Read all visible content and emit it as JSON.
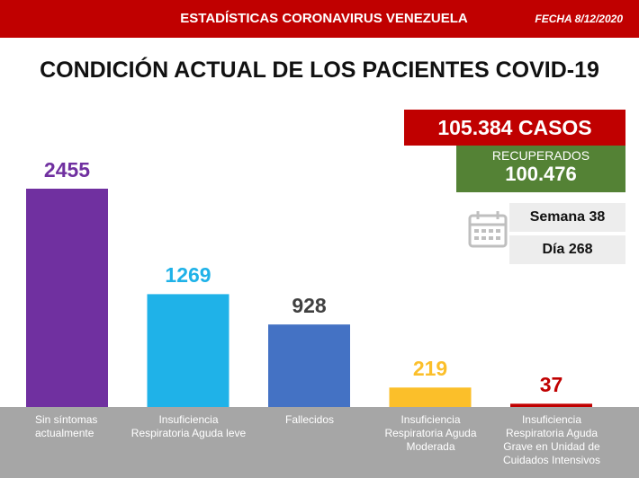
{
  "header": {
    "title": "ESTADÍSTICAS CORONAVIRUS VENEZUELA",
    "date": "FECHA 8/12/2020"
  },
  "summary": {
    "cases": "105.384 CASOS",
    "recovered_label": "RECUPERADOS",
    "recovered": "100.476",
    "week": "Semana 38",
    "day": "Día 268"
  },
  "chart_data": {
    "type": "bar",
    "title": "CONDICIÓN ACTUAL DE LOS PACIENTES COVID-19",
    "categories": [
      "Sin síntomas actualmente",
      "Insuficiencia Respiratoria Aguda leve",
      "Fallecidos",
      "Insuficiencia Respiratoria Aguda Moderada",
      "Insuficiencia Respiratoria Aguda Grave en Unidad de Cuidados Intensivos"
    ],
    "values": [
      2455,
      1269,
      928,
      219,
      37
    ],
    "colors": [
      "#7030a0",
      "#1fb2e8",
      "#4472c4",
      "#fbbf2a",
      "#c00000"
    ],
    "label_colors": [
      "#7030a0",
      "#1fb2e8",
      "#404040",
      "#fbbf2a",
      "#c00000"
    ]
  }
}
